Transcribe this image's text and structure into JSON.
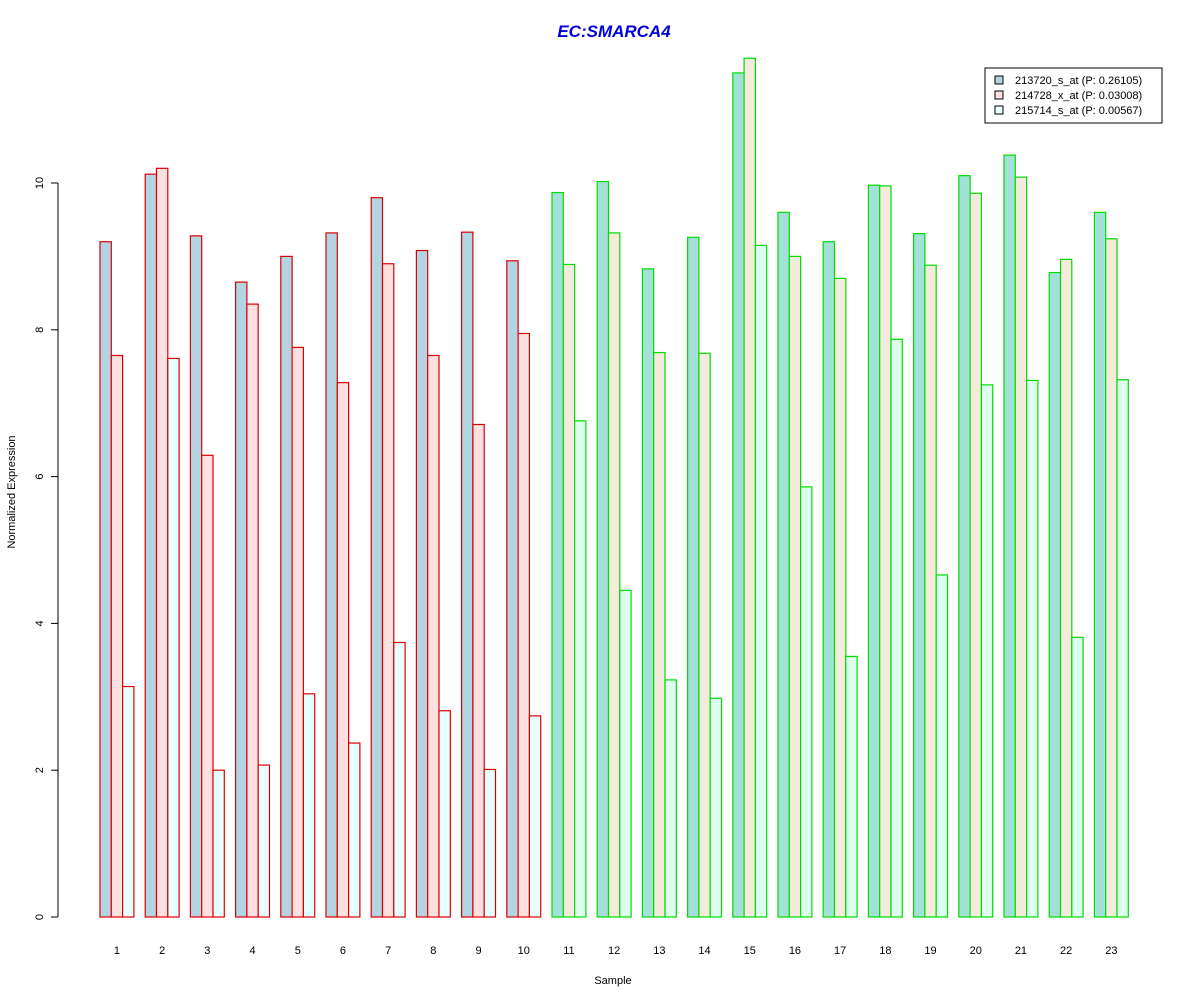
{
  "chart_data": {
    "type": "bar",
    "title": "EC:SMARCA4",
    "xlabel": "Sample",
    "ylabel": "Normalized Expression",
    "ylim": [
      0,
      12
    ],
    "yticks": [
      0,
      2,
      4,
      6,
      8,
      10
    ],
    "grid": false,
    "legend_position": "top-right",
    "categories": [
      "1",
      "2",
      "3",
      "4",
      "5",
      "6",
      "7",
      "8",
      "9",
      "10",
      "11",
      "12",
      "13",
      "14",
      "15",
      "16",
      "17",
      "18",
      "19",
      "20",
      "21",
      "22",
      "23"
    ],
    "group_border_colors": [
      "#dd0000",
      "#dd0000",
      "#dd0000",
      "#dd0000",
      "#dd0000",
      "#dd0000",
      "#dd0000",
      "#dd0000",
      "#dd0000",
      "#dd0000",
      "#00dd00",
      "#00dd00",
      "#00dd00",
      "#00dd00",
      "#00dd00",
      "#00dd00",
      "#00dd00",
      "#00dd00",
      "#00dd00",
      "#00dd00",
      "#00dd00",
      "#00dd00",
      "#00dd00"
    ],
    "series": [
      {
        "name": "213720_s_at (P: 0.26105)",
        "fill_red_group": "#b3d5e3",
        "fill_green_group": "#a3e0d8",
        "values": [
          9.2,
          10.12,
          9.28,
          8.65,
          9.0,
          9.32,
          9.8,
          9.08,
          9.33,
          8.94,
          9.87,
          10.02,
          8.83,
          9.26,
          11.5,
          9.6,
          9.2,
          9.97,
          9.31,
          10.1,
          10.38,
          8.78,
          9.6
        ]
      },
      {
        "name": "214728_x_at (P: 0.03008)",
        "fill_red_group": "#ffe0e0",
        "fill_green_group": "#f5ebdc",
        "values": [
          7.65,
          10.2,
          6.29,
          8.35,
          7.76,
          7.28,
          8.9,
          7.65,
          6.71,
          7.95,
          8.89,
          9.32,
          7.69,
          7.68,
          11.7,
          9.0,
          8.7,
          9.96,
          8.88,
          9.86,
          10.08,
          8.96,
          9.24
        ]
      },
      {
        "name": "215714_s_at (P: 0.00567)",
        "fill_red_group": "#e8ffff",
        "fill_green_group": "#dcfff0",
        "values": [
          3.14,
          7.61,
          2.0,
          2.07,
          3.04,
          2.37,
          3.74,
          2.81,
          2.01,
          2.74,
          6.76,
          4.45,
          3.23,
          2.98,
          9.15,
          5.86,
          3.55,
          7.87,
          4.66,
          7.25,
          7.31,
          3.81,
          7.32
        ]
      }
    ],
    "legend_fills": [
      "#b3d5e3",
      "#ffe0e0",
      "#e8ffff"
    ]
  },
  "colors": {
    "title": "#0000dd",
    "axis": "#000000",
    "legend_border": "#000000"
  }
}
